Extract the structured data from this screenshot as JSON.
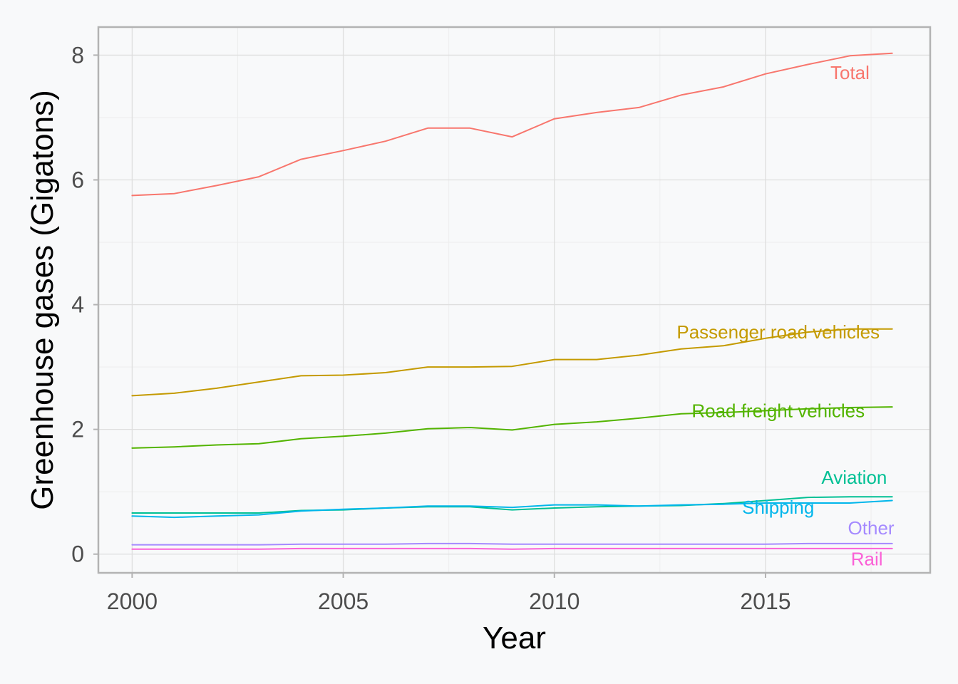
{
  "chart_data": {
    "type": "line",
    "title": "",
    "xlabel": "Year",
    "ylabel": "Greenhouse gases (Gigatons)",
    "xlim": [
      1999.2,
      2018.9
    ],
    "ylim": [
      -0.3,
      8.45
    ],
    "x_ticks": [
      2000,
      2005,
      2010,
      2015
    ],
    "y_ticks": [
      0,
      2,
      4,
      6,
      8
    ],
    "x_tick_labels": [
      "2000",
      "2005",
      "2010",
      "2015"
    ],
    "y_tick_labels": [
      "0",
      "2",
      "4",
      "6",
      "8"
    ],
    "grid": true,
    "legend": "none (direct labels at line ends)",
    "x": [
      2000,
      2001,
      2002,
      2003,
      2004,
      2005,
      2006,
      2007,
      2008,
      2009,
      2010,
      2011,
      2012,
      2013,
      2014,
      2015,
      2016,
      2017,
      2018
    ],
    "series": [
      {
        "name": "Total",
        "color": "#F8766D",
        "values": [
          5.75,
          5.78,
          5.91,
          6.05,
          6.33,
          6.47,
          6.62,
          6.83,
          6.83,
          6.69,
          6.98,
          7.08,
          7.16,
          7.36,
          7.49,
          7.7,
          7.85,
          7.99,
          8.03
        ],
        "label_pos": [
          2017.0,
          7.72
        ]
      },
      {
        "name": "Passenger road vehicles",
        "color": "#C49A00",
        "values": [
          2.54,
          2.58,
          2.66,
          2.76,
          2.86,
          2.87,
          2.91,
          3.0,
          3.0,
          3.01,
          3.12,
          3.12,
          3.19,
          3.29,
          3.34,
          3.46,
          3.56,
          3.61,
          3.61
        ],
        "label_pos": [
          2015.3,
          3.56
        ]
      },
      {
        "name": "Road freight vehicles",
        "color": "#53B400",
        "values": [
          1.7,
          1.72,
          1.75,
          1.77,
          1.85,
          1.89,
          1.94,
          2.01,
          2.03,
          1.99,
          2.08,
          2.12,
          2.18,
          2.25,
          2.27,
          2.3,
          2.33,
          2.35,
          2.36
        ],
        "label_pos": [
          2015.3,
          2.3
        ]
      },
      {
        "name": "Aviation",
        "color": "#00C094",
        "values": [
          0.66,
          0.66,
          0.66,
          0.66,
          0.7,
          0.71,
          0.74,
          0.76,
          0.76,
          0.71,
          0.74,
          0.76,
          0.77,
          0.78,
          0.81,
          0.86,
          0.91,
          0.92,
          0.92
        ],
        "label_pos": [
          2017.1,
          1.23
        ]
      },
      {
        "name": "Shipping",
        "color": "#00B6EB",
        "values": [
          0.61,
          0.59,
          0.61,
          0.63,
          0.69,
          0.72,
          0.74,
          0.77,
          0.77,
          0.75,
          0.79,
          0.79,
          0.77,
          0.79,
          0.8,
          0.82,
          0.82,
          0.82,
          0.86
        ],
        "label_pos": [
          2015.3,
          0.75
        ]
      },
      {
        "name": "Other",
        "color": "#A58AFF",
        "values": [
          0.15,
          0.15,
          0.15,
          0.15,
          0.16,
          0.16,
          0.16,
          0.17,
          0.17,
          0.16,
          0.16,
          0.16,
          0.16,
          0.16,
          0.16,
          0.16,
          0.17,
          0.17,
          0.17
        ],
        "label_pos": [
          2017.5,
          0.42
        ]
      },
      {
        "name": "Rail",
        "color": "#FB61D7",
        "values": [
          0.08,
          0.08,
          0.08,
          0.08,
          0.09,
          0.09,
          0.09,
          0.09,
          0.09,
          0.08,
          0.09,
          0.09,
          0.09,
          0.09,
          0.09,
          0.09,
          0.09,
          0.09,
          0.09
        ],
        "label_pos": [
          2017.4,
          -0.08
        ]
      }
    ]
  }
}
